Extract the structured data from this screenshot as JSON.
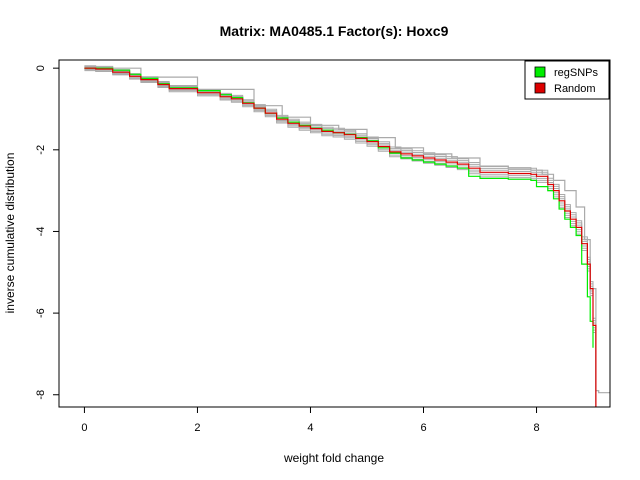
{
  "chart_data": {
    "type": "line",
    "title": "Matrix: MA0485.1 Factor(s): Hoxc9",
    "xlabel": "weight fold change",
    "ylabel": "inverse cumulative distribution",
    "xlim": [
      -0.45,
      9.3
    ],
    "ylim": [
      -8.3,
      0.2
    ],
    "xticks": [
      0,
      2,
      4,
      6,
      8
    ],
    "yticks": [
      0,
      -2,
      -4,
      -6,
      -8
    ],
    "legend_position": "top-right",
    "grid": false,
    "series": [
      {
        "name": "regSNPs",
        "color": "#00ee00",
        "x": [
          0.0,
          0.2,
          0.5,
          0.8,
          1.0,
          1.3,
          1.5,
          2.0,
          2.4,
          2.6,
          2.8,
          3.0,
          3.2,
          3.4,
          3.6,
          3.8,
          4.0,
          4.2,
          4.4,
          4.6,
          4.8,
          5.0,
          5.2,
          5.4,
          5.6,
          5.8,
          6.0,
          6.2,
          6.4,
          6.6,
          6.8,
          7.0,
          7.5,
          7.9,
          8.0,
          8.2,
          8.3,
          8.4,
          8.5,
          8.6,
          8.7,
          8.8,
          8.9,
          8.95,
          9.0
        ],
        "y": [
          0.0,
          0.0,
          -0.05,
          -0.15,
          -0.25,
          -0.38,
          -0.48,
          -0.55,
          -0.65,
          -0.72,
          -0.85,
          -0.98,
          -1.1,
          -1.22,
          -1.32,
          -1.4,
          -1.47,
          -1.52,
          -1.58,
          -1.62,
          -1.7,
          -1.78,
          -1.95,
          -2.08,
          -2.2,
          -2.25,
          -2.3,
          -2.35,
          -2.4,
          -2.45,
          -2.65,
          -2.7,
          -2.72,
          -2.75,
          -2.9,
          -3.0,
          -3.2,
          -3.45,
          -3.7,
          -3.9,
          -4.1,
          -4.8,
          -5.6,
          -6.2,
          -6.85
        ]
      },
      {
        "name": "Random",
        "color": "#dd0000",
        "x": [
          0.0,
          0.2,
          0.5,
          0.8,
          1.0,
          1.3,
          1.5,
          2.0,
          2.4,
          2.6,
          2.8,
          3.0,
          3.2,
          3.4,
          3.6,
          3.8,
          4.0,
          4.2,
          4.4,
          4.6,
          4.8,
          5.0,
          5.2,
          5.4,
          5.6,
          5.8,
          6.0,
          6.2,
          6.4,
          6.6,
          6.8,
          7.0,
          7.5,
          7.9,
          8.0,
          8.2,
          8.3,
          8.4,
          8.5,
          8.6,
          8.7,
          8.8,
          8.9,
          8.95,
          9.0,
          9.05
        ],
        "y": [
          0.0,
          -0.02,
          -0.1,
          -0.2,
          -0.28,
          -0.4,
          -0.5,
          -0.6,
          -0.7,
          -0.75,
          -0.86,
          -0.98,
          -1.1,
          -1.25,
          -1.35,
          -1.42,
          -1.48,
          -1.55,
          -1.58,
          -1.63,
          -1.72,
          -1.8,
          -1.92,
          -2.05,
          -2.1,
          -2.15,
          -2.2,
          -2.25,
          -2.3,
          -2.35,
          -2.45,
          -2.55,
          -2.58,
          -2.6,
          -2.65,
          -2.85,
          -3.0,
          -3.25,
          -3.5,
          -3.7,
          -3.9,
          -4.3,
          -4.8,
          -5.4,
          -6.3,
          -8.3
        ]
      },
      {
        "name": "",
        "color": "#aaaaaa",
        "x": [
          0.0,
          1.0,
          2.0,
          3.0,
          3.5,
          4.0,
          4.5,
          5.0,
          5.5,
          6.0,
          6.5,
          7.0,
          7.5,
          7.9,
          8.1,
          8.3,
          8.5,
          8.7,
          8.85,
          8.95,
          9.05,
          9.1,
          9.3
        ],
        "y": [
          0.0,
          -0.22,
          -0.52,
          -0.92,
          -1.2,
          -1.4,
          -1.5,
          -1.7,
          -1.95,
          -2.1,
          -2.2,
          -2.4,
          -2.45,
          -2.5,
          -2.6,
          -2.75,
          -3.0,
          -3.4,
          -4.2,
          -5.4,
          -7.9,
          -7.95,
          -7.95
        ]
      }
    ]
  }
}
